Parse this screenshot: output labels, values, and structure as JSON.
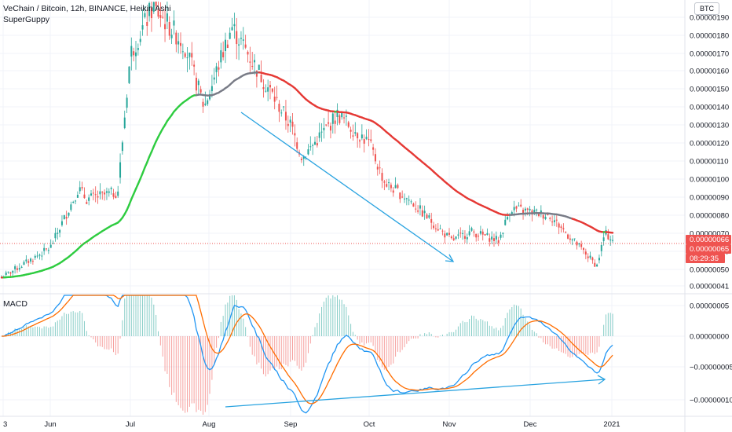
{
  "header": {
    "title": "VeChain / Bitcoin, 12h, BINANCE, Heikin Ashi",
    "indicator": "SuperGuppy",
    "currency": "BTC"
  },
  "macd_panel": {
    "label": "MACD"
  },
  "colors": {
    "bull": "#26a69a",
    "bear": "#ef5350",
    "ema_green": "#2ecc40",
    "ema_red": "#e53935",
    "ema_gray": "#787b86",
    "macd_line": "#2196f3",
    "signal_line": "#ff6d00",
    "trend_arrow": "#29a3e0",
    "price_badge": "#ef5350"
  },
  "price_scale": {
    "labels": [
      "0.00000190",
      "0.00000180",
      "0.00000170",
      "0.00000160",
      "0.00000150",
      "0.00000140",
      "0.00000130",
      "0.00000120",
      "0.00000110",
      "0.00000100",
      "0.00000090",
      "0.00000080",
      "0.00000070",
      "0.00000060",
      "0.00000050",
      "0.00000041"
    ],
    "badges": [
      "0.00000066",
      "0.00000065",
      "08:29:35"
    ]
  },
  "macd_scale": {
    "labels": [
      "0.00000005",
      "0.00000000",
      "−0.00000005",
      "−0.00000010"
    ]
  },
  "time_axis": {
    "labels": [
      "3",
      "Jun",
      "Jul",
      "Aug",
      "Sep",
      "Oct",
      "Nov",
      "Dec",
      "2021"
    ]
  },
  "chart_data": {
    "type": "candlestick",
    "title": "VeChain / Bitcoin, 12h, BINANCE, Heikin Ashi",
    "ylim": [
      4.1e-07,
      1.97e-06
    ],
    "price_path": [
      [
        "3",
        4.5e-07
      ],
      [
        "Jun",
        6.2e-07
      ],
      [
        "Jun +6d",
        9.5e-07
      ],
      [
        "Jun +10d",
        8.9e-07
      ],
      [
        "Jun +22d",
        9.3e-07
      ],
      [
        "Jul",
        1.7e-06
      ],
      [
        "Jul +3d",
        1.96e-06
      ],
      [
        "Jul +20d",
        1.75e-06
      ],
      [
        "Aug",
        1.4e-06
      ],
      [
        "Aug +12d",
        1.85e-06
      ],
      [
        "Sep",
        1.3e-06
      ],
      [
        "Sep +6d",
        1.12e-06
      ],
      [
        "Sep +27d",
        1.36e-06
      ],
      [
        "Oct",
        1.2e-06
      ],
      [
        "Oct +12d",
        9.8e-07
      ],
      [
        "Oct +25d",
        8.9e-07
      ],
      [
        "Nov",
        6.6e-07
      ],
      [
        "Nov +10d",
        7.1e-07
      ],
      [
        "Nov +22d",
        6.6e-07
      ],
      [
        "Dec",
        8.4e-07
      ],
      [
        "Dec +10d",
        8e-07
      ],
      [
        "Dec +24d",
        5.2e-07
      ],
      [
        "2021",
        7e-07
      ],
      [
        "2021 +2d",
        6.6e-07
      ]
    ],
    "last_price": 6.6e-07,
    "macd_ylim": [
      -1.1e-07,
      6e-08
    ]
  }
}
